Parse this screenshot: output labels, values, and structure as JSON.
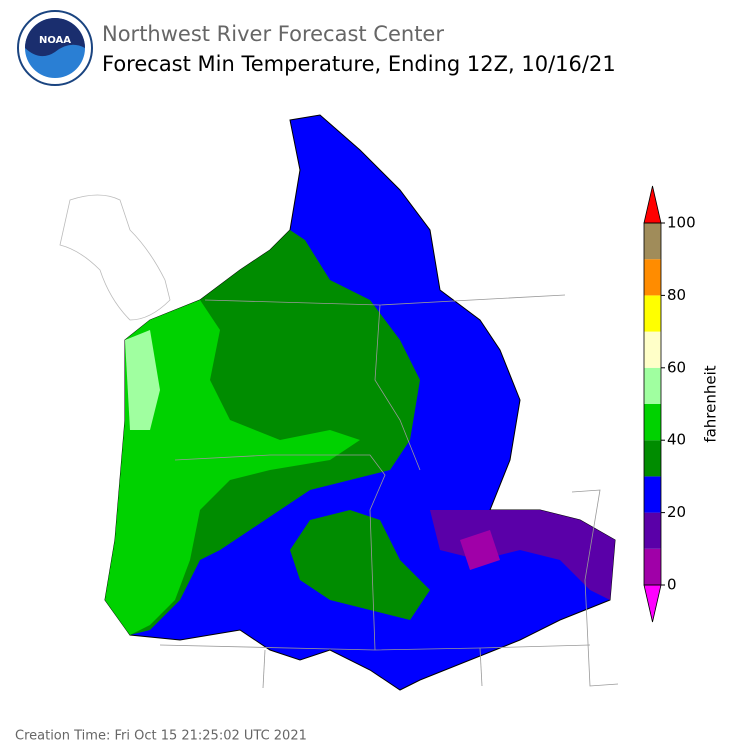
{
  "header": {
    "title": "Northwest River Forecast Center",
    "subtitle": "Forecast Min Temperature, Ending 12Z, 10/16/21"
  },
  "colorbar": {
    "label": "fahrenheit",
    "ticks": [
      0,
      20,
      40,
      60,
      80,
      100
    ],
    "colors": [
      "#a000a8",
      "#5a00a8",
      "#0000ff",
      "#008c00",
      "#00d200",
      "#a0ffa0",
      "#ffffc8",
      "#ffff00",
      "#ff8c00",
      "#a08c5a"
    ],
    "under_color": "#ff00ff",
    "over_color": "#ff0000"
  },
  "footer": {
    "creation_time": "Creation Time: Fri Oct 15 21:25:02 UTC 2021"
  }
}
